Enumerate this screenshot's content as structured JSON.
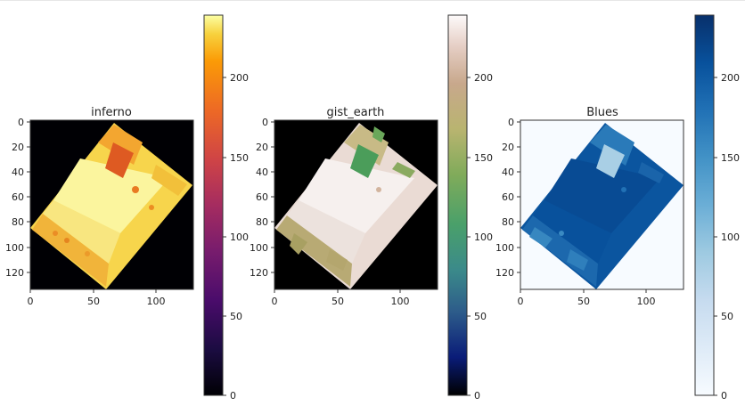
{
  "chart_data": [
    {
      "type": "heatmap",
      "title": "inferno",
      "colormap": "inferno",
      "x_ticks": [
        "0",
        "50",
        "100"
      ],
      "y_ticks": [
        "0",
        "20",
        "40",
        "60",
        "80",
        "100",
        "120"
      ],
      "xlim": [
        0,
        130
      ],
      "ylim": [
        133,
        0
      ],
      "colorbar": {
        "range": [
          0,
          240
        ],
        "ticks": [
          "0",
          "50",
          "100",
          "150",
          "200"
        ]
      }
    },
    {
      "type": "heatmap",
      "title": "gist_earth",
      "colormap": "gist_earth",
      "x_ticks": [
        "0",
        "50",
        "100"
      ],
      "y_ticks": [
        "0",
        "20",
        "40",
        "60",
        "80",
        "100",
        "120"
      ],
      "xlim": [
        0,
        130
      ],
      "ylim": [
        133,
        0
      ],
      "colorbar": {
        "range": [
          0,
          240
        ],
        "ticks": [
          "0",
          "50",
          "100",
          "150",
          "200"
        ]
      }
    },
    {
      "type": "heatmap",
      "title": "Blues",
      "colormap": "Blues",
      "x_ticks": [
        "0",
        "50",
        "100"
      ],
      "y_ticks": [
        "0",
        "20",
        "40",
        "60",
        "80",
        "100",
        "120"
      ],
      "xlim": [
        0,
        130
      ],
      "ylim": [
        133,
        0
      ],
      "colorbar": {
        "range": [
          0,
          240
        ],
        "ticks": [
          "0",
          "50",
          "100",
          "150",
          "200"
        ]
      }
    }
  ]
}
